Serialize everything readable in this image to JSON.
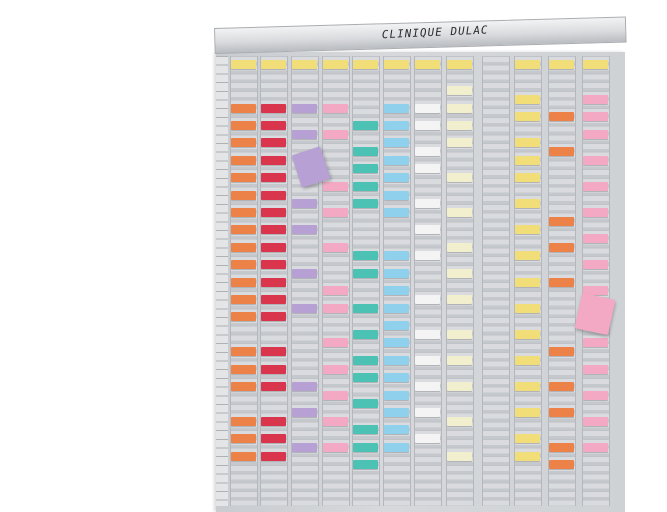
{
  "board": {
    "title": "CLINIQUE DULAC",
    "colors": {
      "yellow": "#f2de78",
      "orange": "#ec8248",
      "red": "#d9354c",
      "violet": "#b7a0d4",
      "pink": "#f3a9c4",
      "teal": "#4cc2b4",
      "blue": "#8fd0ec",
      "white": "#f4f4f4",
      "cream": "#f2efcf"
    },
    "columns": [
      {
        "cards": [
          [
            "yellow",
            0
          ],
          [
            "orange",
            5
          ],
          [
            "orange",
            7
          ],
          [
            "orange",
            9
          ],
          [
            "orange",
            11
          ],
          [
            "orange",
            13
          ],
          [
            "orange",
            15
          ],
          [
            "orange",
            17
          ],
          [
            "orange",
            19
          ],
          [
            "orange",
            21
          ],
          [
            "orange",
            23
          ],
          [
            "orange",
            25
          ],
          [
            "orange",
            27
          ],
          [
            "orange",
            29
          ],
          [
            "orange",
            33
          ],
          [
            "orange",
            35
          ],
          [
            "orange",
            37
          ],
          [
            "orange",
            41
          ],
          [
            "orange",
            43
          ],
          [
            "orange",
            45
          ]
        ]
      },
      {
        "cards": [
          [
            "yellow",
            0
          ],
          [
            "red",
            5
          ],
          [
            "red",
            7
          ],
          [
            "red",
            9
          ],
          [
            "red",
            11
          ],
          [
            "red",
            13
          ],
          [
            "red",
            15
          ],
          [
            "red",
            17
          ],
          [
            "red",
            19
          ],
          [
            "red",
            21
          ],
          [
            "red",
            23
          ],
          [
            "red",
            25
          ],
          [
            "red",
            27
          ],
          [
            "red",
            29
          ],
          [
            "red",
            33
          ],
          [
            "red",
            35
          ],
          [
            "red",
            37
          ],
          [
            "red",
            41
          ],
          [
            "red",
            43
          ],
          [
            "red",
            45
          ]
        ]
      },
      {
        "cards": [
          [
            "yellow",
            0
          ],
          [
            "violet",
            5
          ],
          [
            "violet",
            8
          ],
          [
            "violet",
            16
          ],
          [
            "violet",
            19
          ],
          [
            "violet",
            24
          ],
          [
            "violet",
            28
          ],
          [
            "violet",
            37
          ],
          [
            "violet",
            40
          ],
          [
            "violet",
            44
          ]
        ]
      },
      {
        "cards": [
          [
            "yellow",
            0
          ],
          [
            "pink",
            5
          ],
          [
            "pink",
            8
          ],
          [
            "pink",
            14
          ],
          [
            "pink",
            17
          ],
          [
            "pink",
            21
          ],
          [
            "pink",
            26
          ],
          [
            "pink",
            28
          ],
          [
            "pink",
            32
          ],
          [
            "pink",
            35
          ],
          [
            "pink",
            38
          ],
          [
            "pink",
            41
          ],
          [
            "pink",
            44
          ]
        ]
      },
      {
        "cards": [
          [
            "yellow",
            0
          ],
          [
            "teal",
            7
          ],
          [
            "teal",
            10
          ],
          [
            "teal",
            12
          ],
          [
            "teal",
            14
          ],
          [
            "teal",
            16
          ],
          [
            "teal",
            22
          ],
          [
            "teal",
            24
          ],
          [
            "teal",
            28
          ],
          [
            "teal",
            31
          ],
          [
            "teal",
            34
          ],
          [
            "teal",
            36
          ],
          [
            "teal",
            39
          ],
          [
            "teal",
            42
          ],
          [
            "teal",
            44
          ],
          [
            "teal",
            46
          ]
        ]
      },
      {
        "cards": [
          [
            "yellow",
            0
          ],
          [
            "blue",
            5
          ],
          [
            "blue",
            7
          ],
          [
            "blue",
            9
          ],
          [
            "blue",
            11
          ],
          [
            "blue",
            13
          ],
          [
            "blue",
            15
          ],
          [
            "blue",
            17
          ],
          [
            "blue",
            22
          ],
          [
            "blue",
            24
          ],
          [
            "blue",
            26
          ],
          [
            "blue",
            28
          ],
          [
            "blue",
            30
          ],
          [
            "blue",
            32
          ],
          [
            "blue",
            34
          ],
          [
            "blue",
            36
          ],
          [
            "blue",
            38
          ],
          [
            "blue",
            40
          ],
          [
            "blue",
            42
          ],
          [
            "blue",
            44
          ]
        ]
      },
      {
        "cards": [
          [
            "yellow",
            0
          ],
          [
            "white",
            5
          ],
          [
            "white",
            7
          ],
          [
            "white",
            10
          ],
          [
            "white",
            12
          ],
          [
            "white",
            16
          ],
          [
            "white",
            19
          ],
          [
            "white",
            22
          ],
          [
            "white",
            27
          ],
          [
            "white",
            31
          ],
          [
            "white",
            34
          ],
          [
            "white",
            37
          ],
          [
            "white",
            40
          ],
          [
            "white",
            43
          ]
        ]
      },
      {
        "cards": [
          [
            "yellow",
            0
          ],
          [
            "cream",
            3
          ],
          [
            "cream",
            5
          ],
          [
            "cream",
            7
          ],
          [
            "cream",
            9
          ],
          [
            "cream",
            13
          ],
          [
            "cream",
            17
          ],
          [
            "cream",
            21
          ],
          [
            "cream",
            24
          ],
          [
            "cream",
            27
          ],
          [
            "cream",
            31
          ],
          [
            "cream",
            34
          ],
          [
            "cream",
            37
          ],
          [
            "cream",
            41
          ],
          [
            "cream",
            45
          ]
        ]
      },
      {
        "cards": []
      },
      {
        "cards": [
          [
            "yellow",
            0
          ],
          [
            "yellow",
            4
          ],
          [
            "yellow",
            6
          ],
          [
            "yellow",
            9
          ],
          [
            "yellow",
            11
          ],
          [
            "yellow",
            13
          ],
          [
            "yellow",
            16
          ],
          [
            "yellow",
            19
          ],
          [
            "yellow",
            22
          ],
          [
            "yellow",
            25
          ],
          [
            "yellow",
            28
          ],
          [
            "yellow",
            31
          ],
          [
            "yellow",
            34
          ],
          [
            "yellow",
            37
          ],
          [
            "yellow",
            40
          ],
          [
            "yellow",
            43
          ],
          [
            "yellow",
            45
          ]
        ]
      },
      {
        "cards": [
          [
            "yellow",
            0
          ],
          [
            "orange",
            6
          ],
          [
            "orange",
            10
          ],
          [
            "orange",
            18
          ],
          [
            "orange",
            21
          ],
          [
            "orange",
            25
          ],
          [
            "orange",
            33
          ],
          [
            "orange",
            37
          ],
          [
            "orange",
            40
          ],
          [
            "orange",
            44
          ],
          [
            "orange",
            46
          ]
        ]
      },
      {
        "cards": [
          [
            "yellow",
            0
          ],
          [
            "pink",
            4
          ],
          [
            "pink",
            6
          ],
          [
            "pink",
            8
          ],
          [
            "pink",
            11
          ],
          [
            "pink",
            14
          ],
          [
            "pink",
            17
          ],
          [
            "pink",
            20
          ],
          [
            "pink",
            23
          ],
          [
            "pink",
            26
          ],
          [
            "pink",
            32
          ],
          [
            "pink",
            35
          ],
          [
            "pink",
            38
          ],
          [
            "pink",
            41
          ],
          [
            "pink",
            44
          ]
        ]
      }
    ],
    "loose_cards": [
      {
        "color": "violet"
      },
      {
        "color": "pink"
      }
    ]
  }
}
